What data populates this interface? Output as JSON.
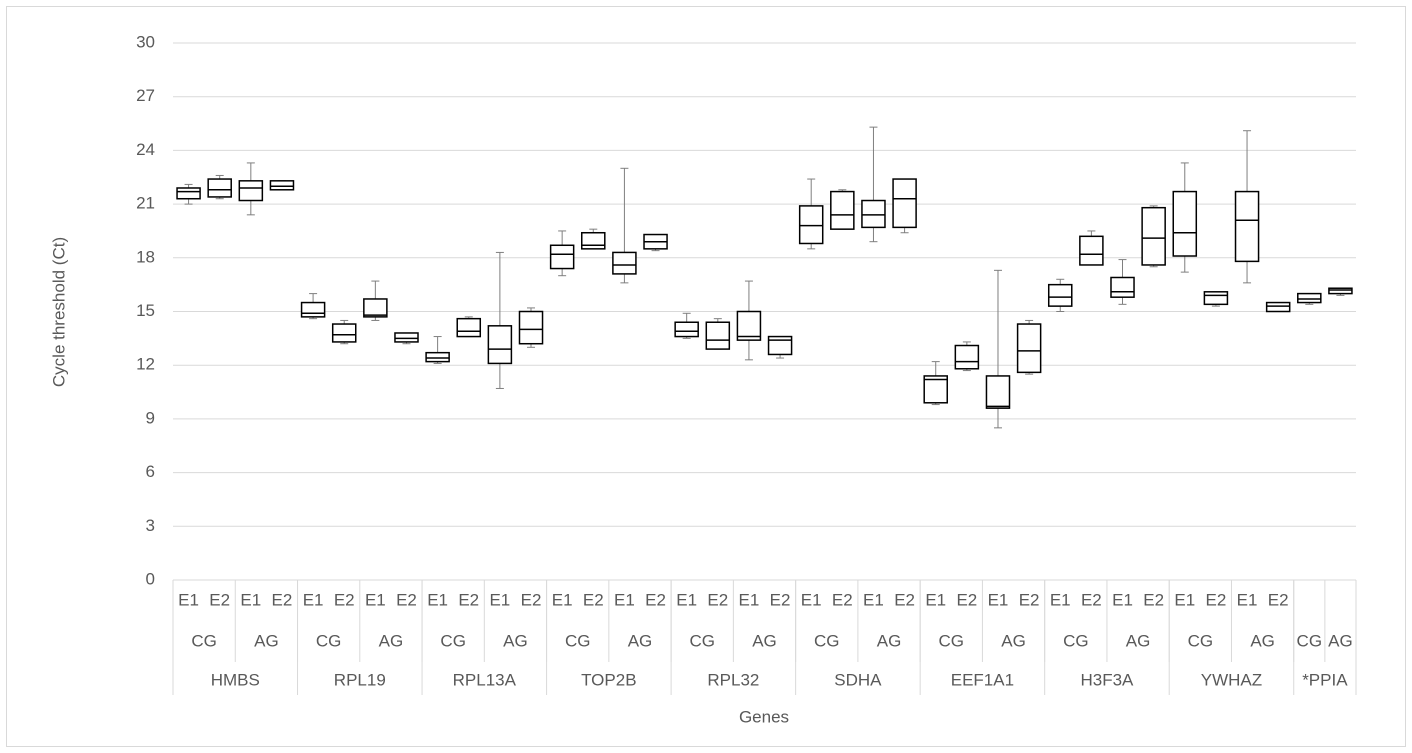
{
  "chart_data": {
    "type": "boxplot",
    "y_label": "Cycle threshold (Ct)",
    "x_label": "Genes",
    "ylim": [
      0,
      30
    ],
    "yticks": [
      0,
      3,
      6,
      9,
      12,
      15,
      18,
      21,
      24,
      27,
      30
    ],
    "grid": true,
    "color": "#000000",
    "whisker_color": "#7f7f7f",
    "genes": [
      {
        "name": "HMBS",
        "groups": [
          {
            "name": "CG",
            "boxes": [
              {
                "label": "E1",
                "min": 21.0,
                "q1": 21.3,
                "median": 21.7,
                "q3": 21.9,
                "max": 22.1
              },
              {
                "label": "E2",
                "min": 21.3,
                "q1": 21.4,
                "median": 21.8,
                "q3": 22.4,
                "max": 22.6
              }
            ]
          },
          {
            "name": "AG",
            "boxes": [
              {
                "label": "E1",
                "min": 20.4,
                "q1": 21.2,
                "median": 21.9,
                "q3": 22.3,
                "max": 23.3
              },
              {
                "label": "E2",
                "min": 21.8,
                "q1": 21.8,
                "median": 22.0,
                "q3": 22.3,
                "max": 22.3
              }
            ]
          }
        ]
      },
      {
        "name": "RPL19",
        "groups": [
          {
            "name": "CG",
            "boxes": [
              {
                "label": "E1",
                "min": 14.6,
                "q1": 14.7,
                "median": 14.9,
                "q3": 15.5,
                "max": 16.0
              },
              {
                "label": "E2",
                "min": 13.2,
                "q1": 13.3,
                "median": 13.7,
                "q3": 14.3,
                "max": 14.5
              }
            ]
          },
          {
            "name": "AG",
            "boxes": [
              {
                "label": "E1",
                "min": 14.5,
                "q1": 14.7,
                "median": 14.8,
                "q3": 15.7,
                "max": 16.7
              },
              {
                "label": "E2",
                "min": 13.2,
                "q1": 13.3,
                "median": 13.5,
                "q3": 13.8,
                "max": 13.8
              }
            ]
          }
        ]
      },
      {
        "name": "RPL13A",
        "groups": [
          {
            "name": "CG",
            "boxes": [
              {
                "label": "E1",
                "min": 12.1,
                "q1": 12.2,
                "median": 12.4,
                "q3": 12.7,
                "max": 13.6
              },
              {
                "label": "E2",
                "min": 13.6,
                "q1": 13.6,
                "median": 13.9,
                "q3": 14.6,
                "max": 14.7
              }
            ]
          },
          {
            "name": "AG",
            "boxes": [
              {
                "label": "E1",
                "min": 10.7,
                "q1": 12.1,
                "median": 12.9,
                "q3": 14.2,
                "max": 18.3
              },
              {
                "label": "E2",
                "min": 13.0,
                "q1": 13.2,
                "median": 14.0,
                "q3": 15.0,
                "max": 15.2
              }
            ]
          }
        ]
      },
      {
        "name": "TOP2B",
        "groups": [
          {
            "name": "CG",
            "boxes": [
              {
                "label": "E1",
                "min": 17.0,
                "q1": 17.4,
                "median": 18.2,
                "q3": 18.7,
                "max": 19.5
              },
              {
                "label": "E2",
                "min": 18.5,
                "q1": 18.5,
                "median": 18.7,
                "q3": 19.4,
                "max": 19.6
              }
            ]
          },
          {
            "name": "AG",
            "boxes": [
              {
                "label": "E1",
                "min": 16.6,
                "q1": 17.1,
                "median": 17.6,
                "q3": 18.3,
                "max": 23.0
              },
              {
                "label": "E2",
                "min": 18.4,
                "q1": 18.5,
                "median": 18.9,
                "q3": 19.3,
                "max": 19.3
              }
            ]
          }
        ]
      },
      {
        "name": "RPL32",
        "groups": [
          {
            "name": "CG",
            "boxes": [
              {
                "label": "E1",
                "min": 13.5,
                "q1": 13.6,
                "median": 13.9,
                "q3": 14.4,
                "max": 14.9
              },
              {
                "label": "E2",
                "min": 12.9,
                "q1": 12.9,
                "median": 13.4,
                "q3": 14.4,
                "max": 14.6
              }
            ]
          },
          {
            "name": "AG",
            "boxes": [
              {
                "label": "E1",
                "min": 12.3,
                "q1": 13.4,
                "median": 13.6,
                "q3": 15.0,
                "max": 16.7
              },
              {
                "label": "E2",
                "min": 12.4,
                "q1": 12.6,
                "median": 13.4,
                "q3": 13.6,
                "max": 13.6
              }
            ]
          }
        ]
      },
      {
        "name": "SDHA",
        "groups": [
          {
            "name": "CG",
            "boxes": [
              {
                "label": "E1",
                "min": 18.5,
                "q1": 18.8,
                "median": 19.8,
                "q3": 20.9,
                "max": 22.4
              },
              {
                "label": "E2",
                "min": 19.6,
                "q1": 19.6,
                "median": 20.4,
                "q3": 21.7,
                "max": 21.8
              }
            ]
          },
          {
            "name": "AG",
            "boxes": [
              {
                "label": "E1",
                "min": 18.9,
                "q1": 19.7,
                "median": 20.4,
                "q3": 21.2,
                "max": 25.3
              },
              {
                "label": "E2",
                "min": 19.4,
                "q1": 19.7,
                "median": 21.3,
                "q3": 22.4,
                "max": 22.4
              }
            ]
          }
        ]
      },
      {
        "name": "EEF1A1",
        "groups": [
          {
            "name": "CG",
            "boxes": [
              {
                "label": "E1",
                "min": 9.8,
                "q1": 9.9,
                "median": 11.2,
                "q3": 11.4,
                "max": 12.2
              },
              {
                "label": "E2",
                "min": 11.7,
                "q1": 11.8,
                "median": 12.2,
                "q3": 13.1,
                "max": 13.3
              }
            ]
          },
          {
            "name": "AG",
            "boxes": [
              {
                "label": "E1",
                "min": 8.5,
                "q1": 9.6,
                "median": 9.7,
                "q3": 11.4,
                "max": 17.3
              },
              {
                "label": "E2",
                "min": 11.5,
                "q1": 11.6,
                "median": 12.8,
                "q3": 14.3,
                "max": 14.5
              }
            ]
          }
        ]
      },
      {
        "name": "H3F3A",
        "groups": [
          {
            "name": "CG",
            "boxes": [
              {
                "label": "E1",
                "min": 15.0,
                "q1": 15.3,
                "median": 15.8,
                "q3": 16.5,
                "max": 16.8
              },
              {
                "label": "E2",
                "min": 17.6,
                "q1": 17.6,
                "median": 18.2,
                "q3": 19.2,
                "max": 19.5
              }
            ]
          },
          {
            "name": "AG",
            "boxes": [
              {
                "label": "E1",
                "min": 15.4,
                "q1": 15.8,
                "median": 16.1,
                "q3": 16.9,
                "max": 17.9
              },
              {
                "label": "E2",
                "min": 17.5,
                "q1": 17.6,
                "median": 19.1,
                "q3": 20.8,
                "max": 20.9
              }
            ]
          }
        ]
      },
      {
        "name": "YWHAZ",
        "groups": [
          {
            "name": "CG",
            "boxes": [
              {
                "label": "E1",
                "min": 17.2,
                "q1": 18.1,
                "median": 19.4,
                "q3": 21.7,
                "max": 23.3
              },
              {
                "label": "E2",
                "min": 15.3,
                "q1": 15.4,
                "median": 15.9,
                "q3": 16.1,
                "max": 16.1
              }
            ]
          },
          {
            "name": "AG",
            "boxes": [
              {
                "label": "E1",
                "min": 16.6,
                "q1": 17.8,
                "median": 20.1,
                "q3": 21.7,
                "max": 25.1
              },
              {
                "label": "E2",
                "min": 15.0,
                "q1": 15.0,
                "median": 15.3,
                "q3": 15.5,
                "max": 15.5
              }
            ]
          }
        ]
      },
      {
        "name": "*PPIA",
        "groups": [
          {
            "name": "CG",
            "boxes": [
              {
                "label": null,
                "min": 15.4,
                "q1": 15.5,
                "median": 15.7,
                "q3": 16.0,
                "max": 16.0
              }
            ]
          },
          {
            "name": "AG",
            "boxes": [
              {
                "label": null,
                "min": 15.9,
                "q1": 16.0,
                "median": 16.2,
                "q3": 16.3,
                "max": 16.3
              }
            ]
          }
        ]
      }
    ]
  }
}
